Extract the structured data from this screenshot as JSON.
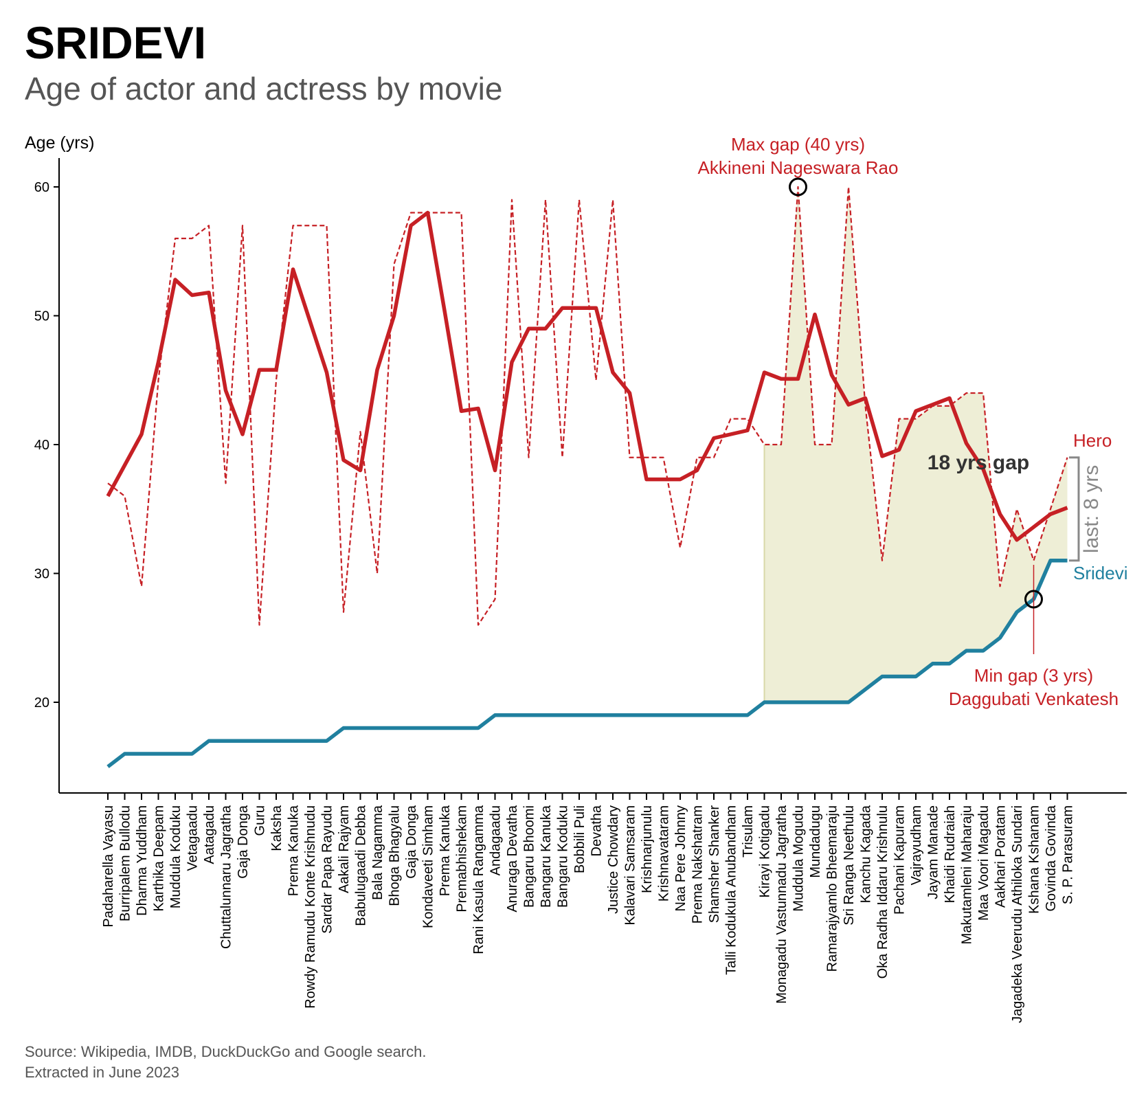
{
  "title": "SRIDEVI",
  "subtitle": "Age of actor and actress by movie",
  "source_line1": "Source: Wikipedia, IMDB, DuckDuckGo and Google search.",
  "source_line2": "Extracted in June 2023",
  "chart_data": {
    "type": "line",
    "ylabel": "Age (yrs)",
    "ylim": [
      12.8,
      62.2
    ],
    "yticks": [
      20,
      30,
      40,
      50,
      60
    ],
    "grid": false,
    "categories": [
      "Padaharella Vayasu",
      "Burripalem Bullodu",
      "Dharma Yuddham",
      "Karthika Deepam",
      "Muddula Koduku",
      "Vetagaadu",
      "Aatagadu",
      "Chuttalunnaru Jagratha",
      "Gaja Donga",
      "Guru",
      "Kaksha",
      "Prema Kanuka",
      "Rowdy Ramudu Konte Krishnudu",
      "Sardar Papa Rayudu",
      "Aakali Rajyam",
      "Babulugaadi Debba",
      "Bala Nagamma",
      "Bhoga Bhagyalu",
      "Gaja Donga",
      "Kondaveeti Simham",
      "Prema Kanuka",
      "Premabhishekam",
      "Rani Kasula Rangamma",
      "Andagaadu",
      "Anuraga Devatha",
      "Bangaru Bhoomi",
      "Bangaru Kanuka",
      "Bangaru Koduku",
      "Bobbili Puli",
      "Devatha",
      "Justice Chowdary",
      "Kalavari Samsaram",
      "Krishnarjunulu",
      "Krishnavataram",
      "Naa Pere Johnny",
      "Prema Nakshatram",
      "Shamsher Shanker",
      "Talli Kodukula Anubandham",
      "Trisulam",
      "Kirayi Kotigadu",
      "Monagadu Vastunnadu Jagratha",
      "Muddula Mogudu",
      "Mundadugu",
      "Ramarajyamlo Bheemaraju",
      "Sri Ranga Neethulu",
      "Kanchu Kagada",
      "Oka Radha Iddaru Krishnulu",
      "Pachani Kapuram",
      "Vajrayudham",
      "Jayam Manade",
      "Khaidi Rudraiah",
      "Makutamleni Maharaju",
      "Maa Voori Magadu",
      "Aakhari Poratam",
      "Jagadeka Veerudu Athiloka Sundari",
      "Kshana Kshanam",
      "Govinda Govinda",
      "S. P. Parasuram"
    ],
    "series": [
      {
        "name": "Hero",
        "style": "dashed",
        "color": "#c62025",
        "values": [
          37,
          36,
          29,
          45,
          56,
          56,
          57,
          37,
          57,
          26,
          45,
          57,
          57,
          57,
          27,
          41,
          30,
          54,
          58,
          58,
          58,
          58,
          26,
          28,
          59,
          39,
          59,
          39,
          59,
          45,
          59,
          39,
          39,
          39,
          32,
          39,
          39,
          42,
          42,
          40,
          40,
          60,
          40,
          40,
          60,
          43,
          31,
          42,
          42,
          43,
          43,
          44,
          44,
          29,
          35,
          31,
          35,
          39
        ]
      },
      {
        "name": "",
        "style": "solid",
        "color": "#c62025",
        "values": [
          36,
          38.4,
          40.8,
          46.4,
          52.8,
          51.6,
          51.8,
          44.2,
          40.8,
          45.8,
          45.8,
          53.6,
          49.6,
          45.6,
          38.8,
          38.0,
          45.8,
          50.0,
          57.0,
          58.0,
          50.4,
          42.6,
          42.8,
          38.0,
          46.4,
          49.0,
          49.0,
          50.6,
          50.6,
          50.6,
          45.6,
          44.0,
          37.3,
          37.3,
          37.3,
          38.0,
          40.5,
          40.8,
          41.1,
          45.6,
          45.1,
          45.1,
          50.1,
          45.4,
          43.1,
          43.6,
          39.1,
          39.6,
          42.6,
          43.1,
          43.6,
          40.1,
          38.1,
          34.6,
          32.6,
          33.6,
          34.6,
          35.1
        ]
      },
      {
        "name": "Sridevi",
        "style": "solid",
        "color": "#20809f",
        "values": [
          15,
          16,
          16,
          16,
          16,
          16,
          17,
          17,
          17,
          17,
          17,
          17,
          17,
          17,
          18,
          18,
          18,
          18,
          18,
          18,
          18,
          18,
          18,
          19,
          19,
          19,
          19,
          19,
          19,
          19,
          19,
          19,
          19,
          19,
          19,
          19,
          19,
          19,
          19,
          20,
          20,
          20,
          20,
          20,
          20,
          21,
          22,
          22,
          22,
          23,
          23,
          24,
          24,
          25,
          27,
          28,
          31,
          31
        ]
      }
    ],
    "shaded_gap": {
      "from_category_index": 39,
      "to_category_index": 57,
      "color": "#eeeed6"
    },
    "annotations": {
      "max_gap_line1": "Max gap (40 yrs)",
      "max_gap_line2": "Akkineni Nageswara Rao",
      "max_gap_index": 41,
      "max_gap_value": 60,
      "min_gap_line1": "Min gap (3 yrs)",
      "min_gap_line2": "Daggubati Venkatesh",
      "min_gap_index": 55,
      "min_gap_value": 28,
      "gap_label": "18 yrs gap",
      "last_label": "last: 8 yrs",
      "hero_label": "Hero",
      "sridevi_label": "Sridevi",
      "last_hero_value": 39,
      "last_sridevi_value": 31
    }
  }
}
